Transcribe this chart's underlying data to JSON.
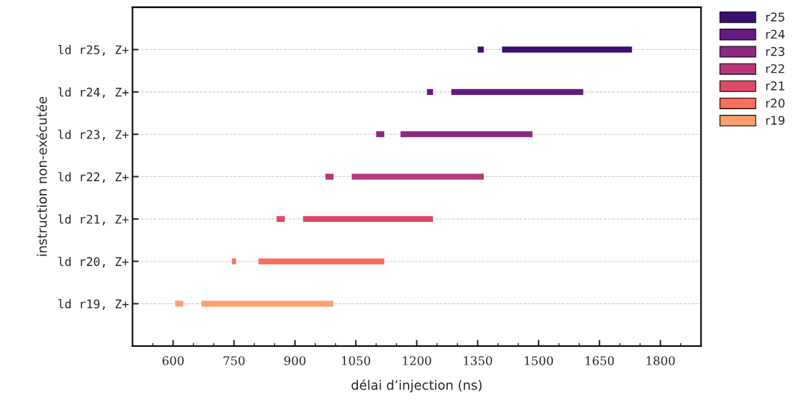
{
  "chart_data": {
    "type": "bar",
    "orientation": "horizontal",
    "xlabel": "délai d’injection (ns)",
    "ylabel": "instruction non-exécutée",
    "categories": [
      "ld r25, Z+",
      "ld r24, Z+",
      "ld r23, Z+",
      "ld r22, Z+",
      "ld r21, Z+",
      "ld r20, Z+",
      "ld r19, Z+"
    ],
    "series": [
      {
        "name": "r25",
        "color": "#3b0f70",
        "base": [
          1350,
          null,
          null,
          null,
          null,
          null,
          null
        ],
        "values": [
          15,
          null,
          null,
          null,
          null,
          null,
          null
        ]
      },
      {
        "color": "#3b0f70",
        "base": [
          1410,
          null,
          null,
          null,
          null,
          null,
          null
        ],
        "values": [
          320,
          null,
          null,
          null,
          null,
          null,
          null
        ]
      },
      {
        "name": "r24",
        "color": "#641a80",
        "base": [
          null,
          1225,
          null,
          null,
          null,
          null,
          null
        ],
        "values": [
          null,
          15,
          null,
          null,
          null,
          null,
          null
        ]
      },
      {
        "color": "#641a80",
        "base": [
          null,
          1285,
          null,
          null,
          null,
          null,
          null
        ],
        "values": [
          null,
          325,
          null,
          null,
          null,
          null,
          null
        ]
      },
      {
        "name": "r23",
        "color": "#8c2981",
        "base": [
          null,
          null,
          1100,
          null,
          null,
          null,
          null
        ],
        "values": [
          null,
          null,
          20,
          null,
          null,
          null,
          null
        ]
      },
      {
        "color": "#8c2981",
        "base": [
          null,
          null,
          1160,
          null,
          null,
          null,
          null
        ],
        "values": [
          null,
          null,
          325,
          null,
          null,
          null,
          null
        ]
      },
      {
        "name": "r22",
        "color": "#b73779",
        "base": [
          null,
          null,
          null,
          975,
          null,
          null,
          null
        ],
        "values": [
          null,
          null,
          null,
          20,
          null,
          null,
          null
        ]
      },
      {
        "color": "#b73779",
        "base": [
          null,
          null,
          null,
          1040,
          null,
          null,
          null
        ],
        "values": [
          null,
          null,
          null,
          325,
          null,
          null,
          null
        ]
      },
      {
        "name": "r21",
        "color": "#de4968",
        "base": [
          null,
          null,
          null,
          null,
          855,
          null,
          null
        ],
        "values": [
          null,
          null,
          null,
          null,
          20,
          null,
          null
        ]
      },
      {
        "color": "#de4968",
        "base": [
          null,
          null,
          null,
          null,
          920,
          null,
          null
        ],
        "values": [
          null,
          null,
          null,
          null,
          320,
          null,
          null
        ]
      },
      {
        "name": "r20",
        "color": "#f7705c",
        "base": [
          null,
          null,
          null,
          null,
          null,
          745,
          null
        ],
        "values": [
          null,
          null,
          null,
          null,
          null,
          10,
          null
        ]
      },
      {
        "color": "#f7705c",
        "base": [
          null,
          null,
          null,
          null,
          null,
          810,
          null
        ],
        "values": [
          null,
          null,
          null,
          null,
          null,
          310,
          null
        ]
      },
      {
        "name": "r19",
        "color": "#fe9f6d",
        "base": [
          null,
          null,
          null,
          null,
          null,
          null,
          605
        ],
        "values": [
          null,
          null,
          null,
          null,
          null,
          null,
          20
        ]
      },
      {
        "color": "#fe9f6d",
        "base": [
          null,
          null,
          null,
          null,
          null,
          null,
          670
        ],
        "values": [
          null,
          null,
          null,
          null,
          null,
          null,
          325
        ]
      }
    ],
    "xlim": [
      500,
      1900
    ],
    "xticks": [
      {
        "value": 550,
        "label": null
      },
      600,
      {
        "value": 650,
        "label": null
      },
      {
        "value": 700,
        "label": null
      },
      750,
      {
        "value": 800,
        "label": null
      },
      {
        "value": 850,
        "label": null
      },
      900,
      {
        "value": 950,
        "label": null
      },
      {
        "value": 1000,
        "label": null
      },
      1050,
      {
        "value": 1100,
        "label": null
      },
      {
        "value": 1150,
        "label": null
      },
      1200,
      {
        "value": 1250,
        "label": null
      },
      {
        "value": 1300,
        "label": null
      },
      1350,
      {
        "value": 1400,
        "label": null
      },
      {
        "value": 1450,
        "label": null
      },
      1500,
      {
        "value": 1550,
        "label": null
      },
      {
        "value": 1600,
        "label": null
      },
      1650,
      {
        "value": 1700,
        "label": null
      },
      {
        "value": 1750,
        "label": null
      },
      1800,
      {
        "value": 1850,
        "label": null
      }
    ],
    "grid": "y",
    "legend": "top right"
  }
}
